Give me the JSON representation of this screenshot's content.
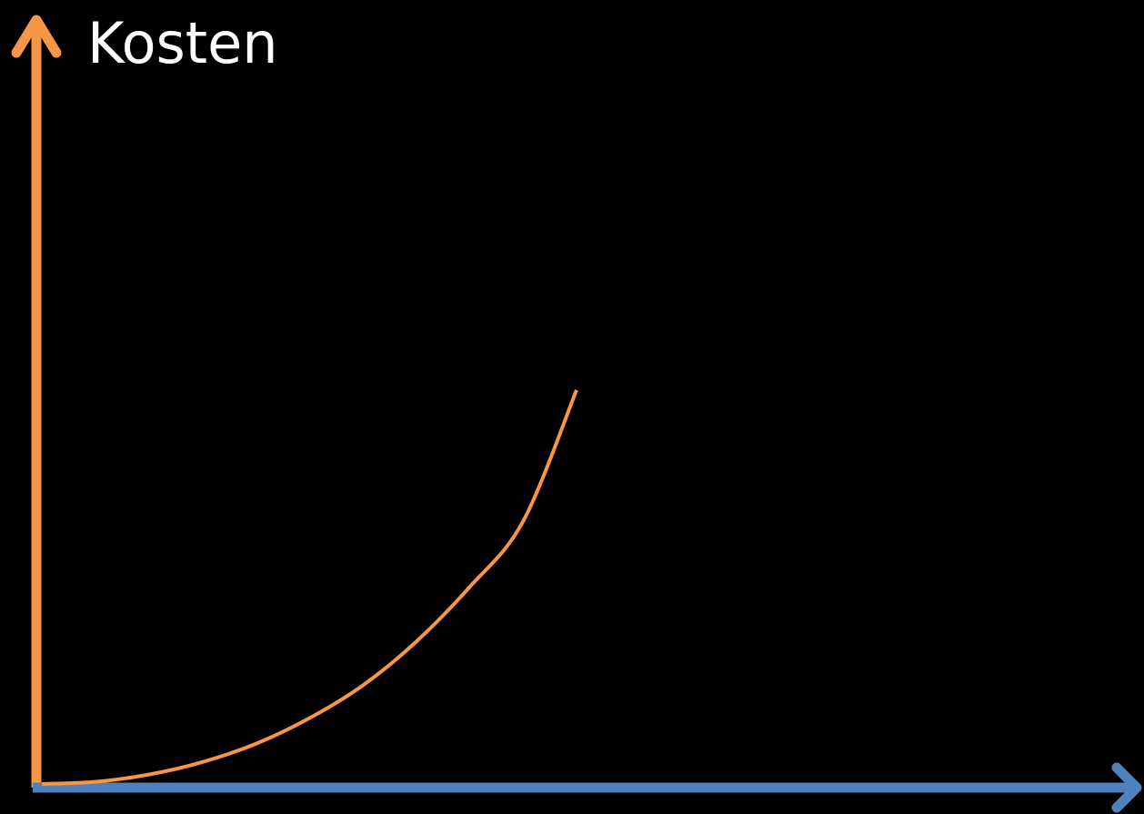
{
  "chart_data": {
    "type": "line",
    "title": "",
    "xlabel": "",
    "ylabel": "Kosten",
    "grid": false,
    "xlim": [
      0,
      10
    ],
    "ylim": [
      0,
      10
    ],
    "series": [
      {
        "color": "#f79646",
        "x": [
          0,
          0.5,
          1,
          1.5,
          2,
          2.5,
          3,
          3.5,
          4,
          4.5,
          5
        ],
        "y": [
          0,
          0.03,
          0.13,
          0.3,
          0.55,
          0.9,
          1.35,
          1.95,
          2.7,
          3.6,
          5.4
        ]
      }
    ],
    "colors": {
      "background": "#000000",
      "y_axis": "#f79646",
      "x_axis": "#4f81bd",
      "label": "#ffffff"
    }
  }
}
